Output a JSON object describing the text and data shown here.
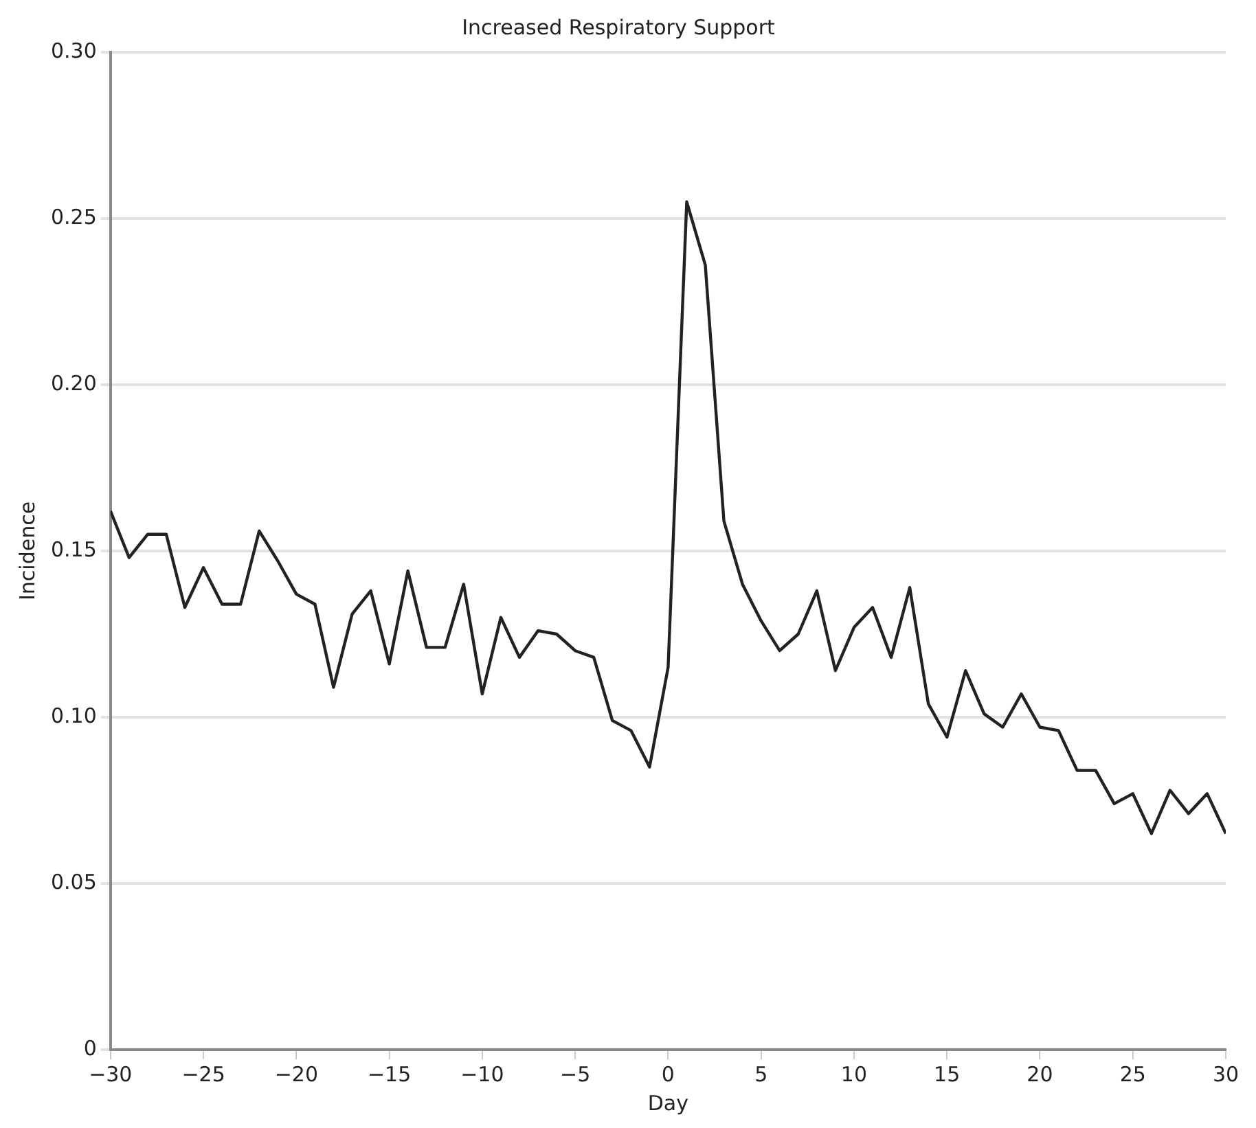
{
  "chart_data": {
    "type": "line",
    "title": "Increased Respiratory Support",
    "xlabel": "Day",
    "ylabel": "Incidence",
    "x": [
      -30,
      -29,
      -28,
      -27,
      -26,
      -25,
      -24,
      -23,
      -22,
      -21,
      -20,
      -19,
      -18,
      -17,
      -16,
      -15,
      -14,
      -13,
      -12,
      -11,
      -10,
      -9,
      -8,
      -7,
      -6,
      -5,
      -4,
      -3,
      -2,
      -1,
      0,
      1,
      2,
      3,
      4,
      5,
      6,
      7,
      8,
      9,
      10,
      11,
      12,
      13,
      14,
      15,
      16,
      17,
      18,
      19,
      20,
      21,
      22,
      23,
      24,
      25,
      26,
      27,
      28,
      29,
      30
    ],
    "series": [
      {
        "color": "#222222",
        "values": [
          0.162,
          0.148,
          0.155,
          0.155,
          0.133,
          0.145,
          0.134,
          0.134,
          0.156,
          0.147,
          0.137,
          0.134,
          0.109,
          0.131,
          0.138,
          0.116,
          0.144,
          0.121,
          0.121,
          0.14,
          0.107,
          0.13,
          0.118,
          0.126,
          0.125,
          0.12,
          0.118,
          0.099,
          0.096,
          0.085,
          0.115,
          0.255,
          0.236,
          0.159,
          0.14,
          0.129,
          0.12,
          0.125,
          0.138,
          0.114,
          0.127,
          0.133,
          0.118,
          0.139,
          0.104,
          0.094,
          0.114,
          0.101,
          0.097,
          0.107,
          0.097,
          0.096,
          0.084,
          0.084,
          0.074,
          0.077,
          0.065,
          0.078,
          0.071,
          0.077,
          0.065
        ]
      }
    ],
    "xlim": [
      -30,
      30
    ],
    "xticks": [
      {
        "value": -30,
        "label": "−30"
      },
      {
        "value": -25,
        "label": "−25"
      },
      {
        "value": -20,
        "label": "−20"
      },
      {
        "value": -15,
        "label": "−15"
      },
      {
        "value": -10,
        "label": "−10"
      },
      {
        "value": -5,
        "label": "−5"
      },
      0,
      5,
      10,
      15,
      20,
      25,
      30
    ],
    "ylim": [
      0,
      0.3
    ],
    "yticks": [
      0,
      {
        "value": 0.05,
        "label": "0.05"
      },
      {
        "value": 0.1,
        "label": "0.10"
      },
      {
        "value": 0.15,
        "label": "0.15"
      },
      {
        "value": 0.2,
        "label": "0.20"
      },
      {
        "value": 0.25,
        "label": "0.25"
      },
      {
        "value": 0.3,
        "label": "0.30"
      }
    ],
    "grid": "y",
    "marker": "none",
    "line_style": "solid",
    "legend": false
  }
}
